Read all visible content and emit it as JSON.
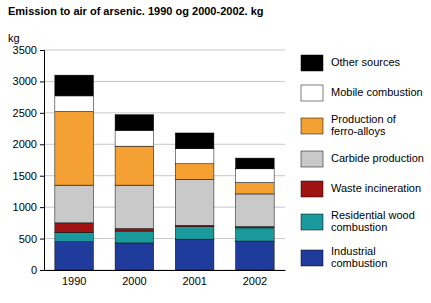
{
  "chart_data": {
    "type": "bar",
    "title": "Emission to air of arsenic. 1990 og 2000-2002. kg",
    "y_label": "kg",
    "categories": [
      "1990",
      "2000",
      "2001",
      "2002"
    ],
    "stacked": true,
    "grid": true,
    "legend": "right",
    "ylim": [
      0,
      3500
    ],
    "yticks": [
      0,
      500,
      1000,
      1500,
      2000,
      2500,
      3000,
      3500
    ],
    "series": [
      {
        "name": "Industrial combustion",
        "color": "#1f3b9b",
        "values": [
          450,
          430,
          490,
          460
        ]
      },
      {
        "name": "Residential wood combustion",
        "color": "#1a9a9c",
        "values": [
          150,
          190,
          200,
          210
        ]
      },
      {
        "name": "Waste incineration",
        "color": "#a11212",
        "values": [
          150,
          40,
          20,
          20
        ]
      },
      {
        "name": "Carbide production",
        "color": "#c9c9c9",
        "values": [
          600,
          690,
          730,
          520
        ]
      },
      {
        "name": "Production of ferro-alloys",
        "color": "#f5a033",
        "values": [
          1170,
          620,
          250,
          180
        ]
      },
      {
        "name": "Mobile combustion",
        "color": "#ffffff",
        "values": [
          250,
          250,
          240,
          220
        ]
      },
      {
        "name": "Other sources",
        "color": "#000000",
        "values": [
          330,
          250,
          250,
          170
        ]
      }
    ]
  }
}
